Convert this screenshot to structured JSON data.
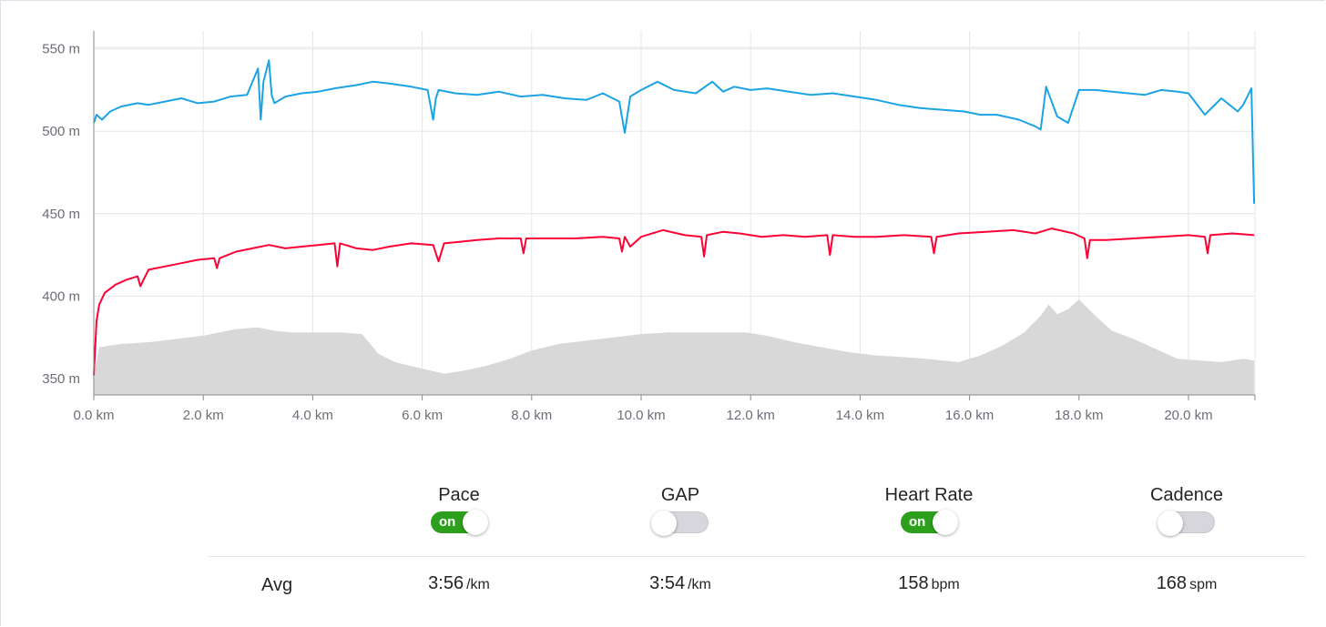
{
  "chart_data": {
    "type": "line",
    "x_unit": "km",
    "y_unit": "m",
    "xlim": [
      0,
      21.2
    ],
    "ylim": [
      340,
      560
    ],
    "x_ticks": [
      0,
      2,
      4,
      6,
      8,
      10,
      12,
      14,
      16,
      18,
      20
    ],
    "x_tick_labels": [
      "0.0 km",
      "2.0 km",
      "4.0 km",
      "6.0 km",
      "8.0 km",
      "10.0 km",
      "12.0 km",
      "14.0 km",
      "16.0 km",
      "18.0 km",
      "20.0 km"
    ],
    "y_ticks": [
      350,
      400,
      450,
      500,
      550
    ],
    "y_tick_labels": [
      "350 m",
      "400 m",
      "450 m",
      "500 m",
      "550 m"
    ],
    "grid": true,
    "series": [
      {
        "kind": "area",
        "color": "#d8d8d8",
        "x": [
          0,
          0.1,
          0.5,
          1.0,
          1.5,
          2.0,
          2.3,
          2.6,
          3.0,
          3.3,
          3.6,
          4.0,
          4.5,
          4.9,
          5.2,
          5.5,
          6.0,
          6.4,
          6.8,
          7.2,
          7.6,
          8.0,
          8.5,
          9.0,
          9.5,
          10.0,
          10.5,
          11.0,
          11.5,
          11.9,
          12.3,
          12.8,
          13.3,
          13.8,
          14.3,
          14.8,
          15.2,
          15.5,
          15.8,
          16.2,
          16.6,
          17.0,
          17.3,
          17.45,
          17.6,
          17.8,
          18.0,
          18.3,
          18.6,
          19.0,
          19.4,
          19.8,
          20.2,
          20.6,
          21.0,
          21.2
        ],
        "y": [
          350,
          369,
          371,
          372,
          374,
          376,
          378,
          380,
          381,
          379,
          378,
          378,
          378,
          377,
          365,
          360,
          356,
          353,
          355,
          358,
          362,
          367,
          371,
          373,
          375,
          377,
          378,
          378,
          378,
          378,
          376,
          372,
          369,
          366,
          364,
          363,
          362,
          361,
          360,
          364,
          370,
          378,
          388,
          395,
          389,
          392,
          398,
          388,
          379,
          374,
          368,
          362,
          361,
          360,
          362,
          361
        ]
      },
      {
        "kind": "line",
        "color": "#fc0134",
        "x": [
          0,
          0.05,
          0.1,
          0.2,
          0.4,
          0.6,
          0.8,
          0.85,
          1.0,
          1.3,
          1.6,
          1.9,
          2.2,
          2.25,
          2.3,
          2.6,
          2.9,
          3.2,
          3.5,
          3.8,
          4.1,
          4.4,
          4.45,
          4.5,
          4.8,
          5.1,
          5.4,
          5.8,
          6.2,
          6.3,
          6.4,
          6.7,
          7.0,
          7.4,
          7.8,
          7.85,
          7.9,
          8.3,
          8.8,
          9.3,
          9.6,
          9.65,
          9.7,
          9.8,
          10.0,
          10.4,
          10.8,
          11.1,
          11.15,
          11.2,
          11.5,
          11.8,
          12.2,
          12.6,
          13.0,
          13.4,
          13.45,
          13.5,
          13.9,
          14.3,
          14.8,
          15.3,
          15.35,
          15.4,
          15.8,
          16.3,
          16.8,
          17.2,
          17.5,
          17.9,
          18.1,
          18.15,
          18.2,
          18.5,
          19.0,
          19.5,
          20.0,
          20.3,
          20.35,
          20.4,
          20.8,
          21.2
        ],
        "y": [
          352,
          385,
          395,
          402,
          407,
          410,
          412,
          406,
          416,
          418,
          420,
          422,
          423,
          417,
          423,
          427,
          429,
          431,
          429,
          430,
          431,
          432,
          418,
          432,
          429,
          428,
          430,
          432,
          431,
          421,
          432,
          433,
          434,
          435,
          435,
          426,
          435,
          435,
          435,
          436,
          435,
          427,
          436,
          430,
          436,
          440,
          437,
          436,
          424,
          437,
          439,
          438,
          436,
          437,
          436,
          437,
          425,
          437,
          436,
          436,
          437,
          436,
          426,
          436,
          438,
          439,
          440,
          438,
          441,
          438,
          435,
          423,
          434,
          434,
          435,
          436,
          437,
          436,
          426,
          437,
          438,
          437
        ]
      },
      {
        "kind": "line",
        "color": "#1ba3e4",
        "x": [
          0,
          0.05,
          0.15,
          0.3,
          0.5,
          0.8,
          1.0,
          1.3,
          1.6,
          1.9,
          2.2,
          2.5,
          2.8,
          3.0,
          3.05,
          3.1,
          3.2,
          3.25,
          3.3,
          3.5,
          3.8,
          4.1,
          4.4,
          4.8,
          5.1,
          5.4,
          5.8,
          6.1,
          6.2,
          6.25,
          6.3,
          6.6,
          7.0,
          7.4,
          7.8,
          8.2,
          8.6,
          9.0,
          9.3,
          9.6,
          9.7,
          9.8,
          10.0,
          10.3,
          10.6,
          11.0,
          11.3,
          11.5,
          11.7,
          12.0,
          12.3,
          12.7,
          13.1,
          13.5,
          13.9,
          14.3,
          14.7,
          15.1,
          15.5,
          15.9,
          16.2,
          16.5,
          16.9,
          17.2,
          17.3,
          17.4,
          17.6,
          17.8,
          18.0,
          18.3,
          18.6,
          18.9,
          19.2,
          19.5,
          19.8,
          20.0,
          20.3,
          20.6,
          20.9,
          21.0,
          21.15,
          21.2
        ],
        "y": [
          505,
          510,
          507,
          512,
          515,
          517,
          516,
          518,
          520,
          517,
          518,
          521,
          522,
          538,
          507,
          530,
          543,
          522,
          517,
          521,
          523,
          524,
          526,
          528,
          530,
          529,
          527,
          525,
          507,
          520,
          525,
          523,
          522,
          524,
          521,
          522,
          520,
          519,
          523,
          518,
          499,
          521,
          525,
          530,
          525,
          523,
          530,
          524,
          527,
          525,
          526,
          524,
          522,
          523,
          521,
          519,
          516,
          514,
          513,
          512,
          510,
          510,
          507,
          503,
          501,
          527,
          509,
          505,
          525,
          525,
          524,
          523,
          522,
          525,
          524,
          523,
          510,
          520,
          512,
          516,
          526,
          456
        ]
      }
    ]
  },
  "controls": [
    {
      "label": "Pace",
      "state": "on",
      "toggle_text": "on"
    },
    {
      "label": "GAP",
      "state": "off",
      "toggle_text": ""
    },
    {
      "label": "Heart Rate",
      "state": "on",
      "toggle_text": "on"
    },
    {
      "label": "Cadence",
      "state": "off",
      "toggle_text": ""
    }
  ],
  "avg": {
    "label": "Avg",
    "pace": {
      "value": "3:56",
      "unit": "/km"
    },
    "gap": {
      "value": "3:54",
      "unit": "/km"
    },
    "heart_rate": {
      "value": "158",
      "unit": "bpm"
    },
    "cadence": {
      "value": "168",
      "unit": "spm"
    }
  }
}
